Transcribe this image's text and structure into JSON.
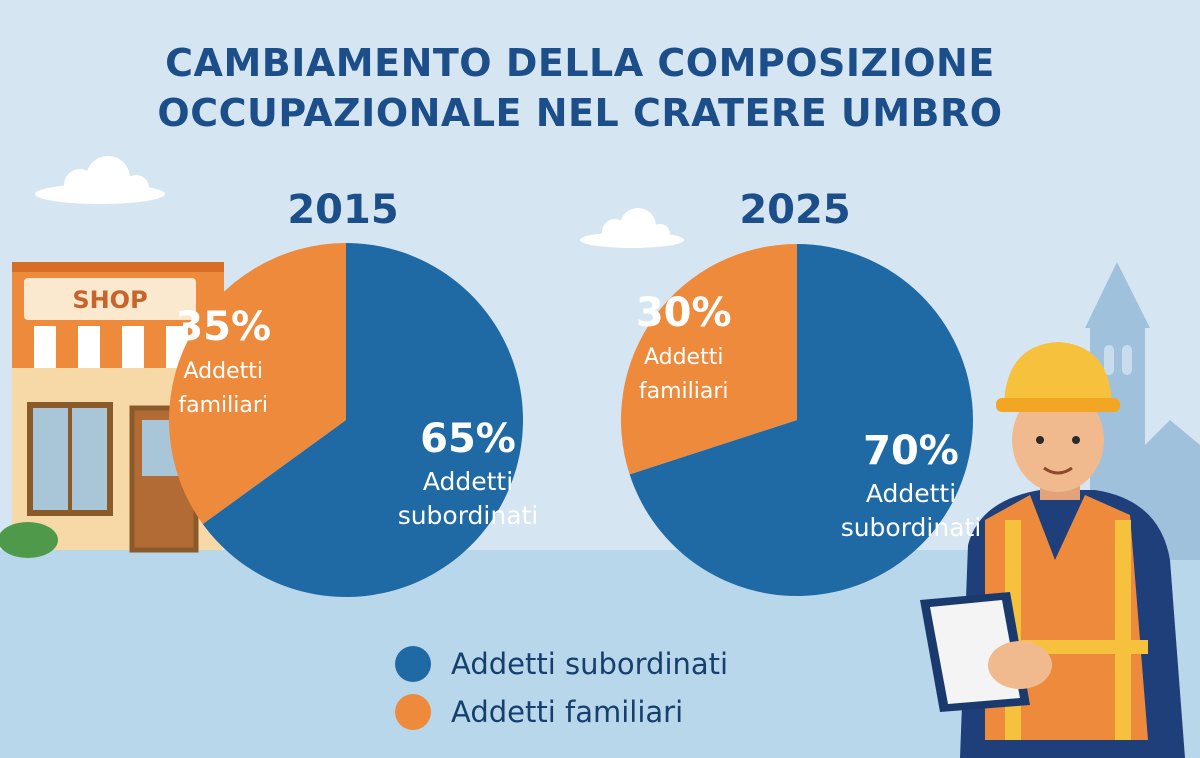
{
  "title": {
    "line1": "CAMBIAMENTO DELLA COMPOSIZIONE",
    "line2": "OCCUPAZIONALE NEL CRATERE UMBRO"
  },
  "shop_sign": "SHOP",
  "colors": {
    "subordinati": "#1f6aa5",
    "familiari": "#ee8a3c",
    "title": "#1c4e8a",
    "background": "#d5e6f2"
  },
  "legend": [
    {
      "label": "Addetti subordinati",
      "color": "#1f6aa5"
    },
    {
      "label": "Addetti familiari",
      "color": "#ee8a3c"
    }
  ],
  "chart_data": [
    {
      "type": "pie",
      "title": "2015",
      "slices": [
        {
          "label": "Addetti subordinati",
          "label_lines": [
            "Addetti",
            "subordinati"
          ],
          "value": 65,
          "display": "65%",
          "color": "#1f6aa5"
        },
        {
          "label": "Addetti familiari",
          "label_lines": [
            "Addetti",
            "familiari"
          ],
          "value": 35,
          "display": "35%",
          "color": "#ee8a3c"
        }
      ]
    },
    {
      "type": "pie",
      "title": "2025",
      "slices": [
        {
          "label": "Addetti subordinati",
          "label_lines": [
            "Addetti",
            "subordinati"
          ],
          "value": 70,
          "display": "70%",
          "color": "#1f6aa5"
        },
        {
          "label": "Addetti familiari",
          "label_lines": [
            "Addetti",
            "familiari"
          ],
          "value": 30,
          "display": "30%",
          "color": "#ee8a3c"
        }
      ]
    }
  ]
}
